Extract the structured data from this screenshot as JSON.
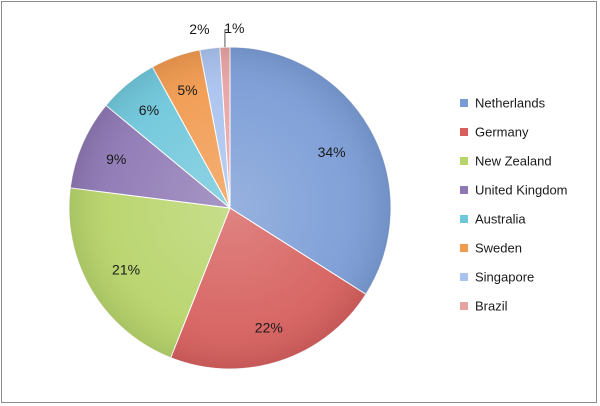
{
  "chart_data": {
    "type": "pie",
    "title": "",
    "categories": [
      "Netherlands",
      "Germany",
      "New Zealand",
      "United Kingdom",
      "Australia",
      "Sweden",
      "Singapore",
      "Brazil"
    ],
    "values": [
      34,
      22,
      21,
      9,
      6,
      5,
      2,
      1
    ],
    "labels": [
      "34%",
      "22%",
      "21%",
      "9%",
      "6%",
      "5%",
      "2%",
      "1%"
    ],
    "colors": [
      "#7a9cd6",
      "#d6605e",
      "#b7d46a",
      "#8e78b4",
      "#6fc7db",
      "#f19a4f",
      "#a9c2ef",
      "#e7a3a2"
    ],
    "start_angle_deg": 0,
    "direction": "clockwise",
    "legend": {
      "position": "right",
      "entries": [
        "Netherlands",
        "Germany",
        "New Zealand",
        "United Kingdom",
        "Australia",
        "Sweden",
        "Singapore",
        "Brazil"
      ]
    }
  }
}
